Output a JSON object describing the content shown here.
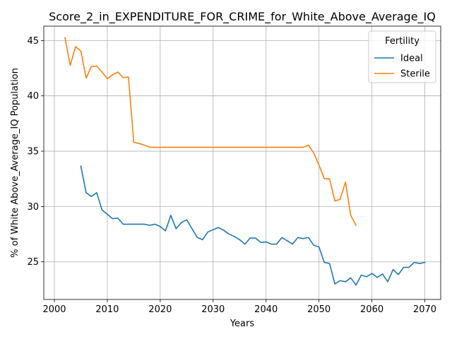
{
  "chart_data": {
    "type": "line",
    "title": "Score_2_in_EXPENDITURE_FOR_CRIME_for_White_Above_Average_IQ",
    "xlabel": "Years",
    "ylabel": "% of White Above_Average_IQ Population",
    "xlim": [
      1998,
      2073
    ],
    "ylim": [
      21.6,
      46.3
    ],
    "xticks": [
      2000,
      2010,
      2020,
      2030,
      2040,
      2050,
      2060,
      2070
    ],
    "yticks": [
      25,
      30,
      35,
      40,
      45
    ],
    "grid": true,
    "legend": {
      "title": "Fertility",
      "placement": "top-right"
    },
    "series": [
      {
        "name": "Ideal",
        "color": "#1f77b4",
        "x": [
          2005,
          2006,
          2007,
          2008,
          2009,
          2010,
          2011,
          2012,
          2013,
          2014,
          2015,
          2016,
          2017,
          2018,
          2019,
          2020,
          2021,
          2022,
          2023,
          2024,
          2025,
          2026,
          2027,
          2028,
          2029,
          2030,
          2031,
          2032,
          2033,
          2034,
          2035,
          2036,
          2037,
          2038,
          2039,
          2040,
          2041,
          2042,
          2043,
          2044,
          2045,
          2046,
          2047,
          2048,
          2049,
          2050,
          2051,
          2052,
          2053,
          2054,
          2055,
          2056,
          2057,
          2058,
          2059,
          2060,
          2061,
          2062,
          2063,
          2064,
          2065,
          2066,
          2067,
          2068,
          2069,
          2070
        ],
        "y": [
          33.65,
          31.25,
          30.9,
          31.25,
          29.7,
          29.3,
          28.9,
          28.95,
          28.4,
          28.4,
          28.4,
          28.4,
          28.4,
          28.3,
          28.4,
          28.2,
          27.8,
          29.2,
          28.0,
          28.55,
          28.8,
          28.0,
          27.2,
          27.0,
          27.7,
          27.9,
          28.1,
          27.85,
          27.5,
          27.3,
          27.0,
          26.6,
          27.15,
          27.15,
          26.75,
          26.8,
          26.6,
          26.6,
          27.2,
          26.9,
          26.6,
          27.2,
          27.1,
          27.2,
          26.5,
          26.35,
          24.95,
          24.85,
          23.0,
          23.3,
          23.2,
          23.55,
          22.9,
          23.8,
          23.65,
          23.95,
          23.6,
          23.9,
          23.2,
          24.3,
          23.85,
          24.5,
          24.5,
          24.95,
          24.85,
          24.95
        ]
      },
      {
        "name": "Sterile",
        "color": "#ff7f0e",
        "x": [
          2002,
          2003,
          2004,
          2005,
          2006,
          2007,
          2008,
          2009,
          2010,
          2011,
          2012,
          2013,
          2014,
          2015,
          2016,
          2017,
          2018,
          2019,
          2020,
          2021,
          2022,
          2023,
          2024,
          2025,
          2026,
          2027,
          2028,
          2029,
          2030,
          2031,
          2032,
          2033,
          2034,
          2035,
          2036,
          2037,
          2038,
          2039,
          2040,
          2041,
          2042,
          2043,
          2044,
          2045,
          2046,
          2047,
          2048,
          2049,
          2050,
          2051,
          2052,
          2053,
          2054,
          2055,
          2056,
          2057
        ],
        "y": [
          45.25,
          42.75,
          44.45,
          44.05,
          41.6,
          42.65,
          42.7,
          42.15,
          41.55,
          41.9,
          42.15,
          41.65,
          41.7,
          35.8,
          35.7,
          35.55,
          35.35,
          35.35,
          35.35,
          35.35,
          35.35,
          35.35,
          35.35,
          35.35,
          35.35,
          35.35,
          35.35,
          35.35,
          35.35,
          35.35,
          35.35,
          35.35,
          35.35,
          35.35,
          35.35,
          35.35,
          35.35,
          35.35,
          35.35,
          35.35,
          35.35,
          35.35,
          35.35,
          35.35,
          35.35,
          35.35,
          35.55,
          34.85,
          33.75,
          32.5,
          32.5,
          30.5,
          30.65,
          32.2,
          29.2,
          28.3
        ]
      }
    ]
  }
}
